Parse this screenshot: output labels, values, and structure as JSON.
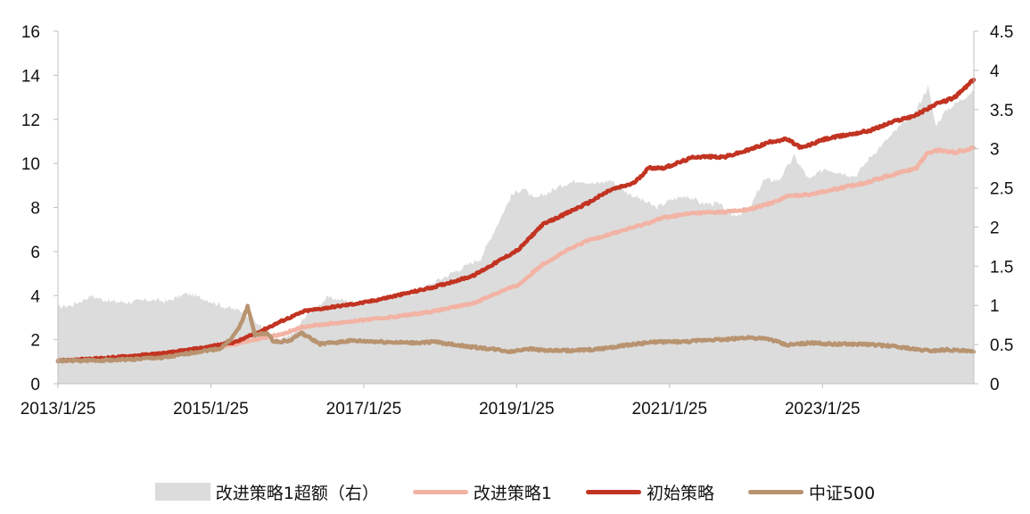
{
  "chart_data": {
    "type": "line",
    "title": "",
    "xlabel": "",
    "ylabel": "",
    "x_ticks": [
      "2013/1/25",
      "2015/1/25",
      "2017/1/25",
      "2019/1/25",
      "2021/1/25",
      "2023/1/25"
    ],
    "x_range": [
      2013.07,
      2025.05
    ],
    "ylim_left": [
      0,
      16
    ],
    "y_ticks_left": [
      "0",
      "2",
      "4",
      "6",
      "8",
      "10",
      "12",
      "14",
      "16"
    ],
    "ylim_right": [
      0,
      4.5
    ],
    "y_ticks_right": [
      "0",
      "0.5",
      "1",
      "1.5",
      "2",
      "2.5",
      "3",
      "3.5",
      "4",
      "4.5"
    ],
    "grid": false,
    "legend_position": "bottom",
    "series": [
      {
        "name": "改进策略1超额（右）",
        "axis": "right",
        "type": "area",
        "color": "#dcdcdc",
        "points": [
          [
            2013.07,
            0.98
          ],
          [
            2013.25,
            1.0
          ],
          [
            2013.5,
            1.12
          ],
          [
            2013.75,
            1.05
          ],
          [
            2014.0,
            1.04
          ],
          [
            2014.25,
            1.07
          ],
          [
            2014.5,
            1.05
          ],
          [
            2014.75,
            1.15
          ],
          [
            2015.0,
            1.08
          ],
          [
            2015.25,
            0.98
          ],
          [
            2015.5,
            0.92
          ],
          [
            2015.7,
            0.75
          ],
          [
            2015.9,
            0.55
          ],
          [
            2016.1,
            0.6
          ],
          [
            2016.35,
            0.9
          ],
          [
            2016.6,
            1.1
          ],
          [
            2016.9,
            1.05
          ],
          [
            2017.1,
            1.02
          ],
          [
            2017.4,
            1.12
          ],
          [
            2017.7,
            1.15
          ],
          [
            2018.0,
            1.3
          ],
          [
            2018.3,
            1.45
          ],
          [
            2018.6,
            1.6
          ],
          [
            2018.8,
            2.0
          ],
          [
            2019.0,
            2.4
          ],
          [
            2019.15,
            2.5
          ],
          [
            2019.3,
            2.35
          ],
          [
            2019.5,
            2.45
          ],
          [
            2019.7,
            2.55
          ],
          [
            2019.9,
            2.6
          ],
          [
            2020.1,
            2.55
          ],
          [
            2020.3,
            2.6
          ],
          [
            2020.5,
            2.45
          ],
          [
            2020.7,
            2.35
          ],
          [
            2020.9,
            2.25
          ],
          [
            2021.1,
            2.35
          ],
          [
            2021.3,
            2.4
          ],
          [
            2021.5,
            2.3
          ],
          [
            2021.7,
            2.3
          ],
          [
            2021.9,
            2.15
          ],
          [
            2022.1,
            2.2
          ],
          [
            2022.3,
            2.6
          ],
          [
            2022.5,
            2.6
          ],
          [
            2022.7,
            2.9
          ],
          [
            2022.9,
            2.6
          ],
          [
            2023.1,
            2.75
          ],
          [
            2023.3,
            2.7
          ],
          [
            2023.5,
            2.65
          ],
          [
            2023.7,
            2.9
          ],
          [
            2023.9,
            3.1
          ],
          [
            2024.1,
            3.3
          ],
          [
            2024.3,
            3.5
          ],
          [
            2024.45,
            3.8
          ],
          [
            2024.55,
            3.3
          ],
          [
            2024.7,
            3.5
          ],
          [
            2024.85,
            3.6
          ],
          [
            2025.05,
            3.75
          ]
        ]
      },
      {
        "name": "改进策略1",
        "axis": "left",
        "color": "#f2b3a4",
        "points": [
          [
            2013.07,
            1.05
          ],
          [
            2013.5,
            1.1
          ],
          [
            2014.0,
            1.22
          ],
          [
            2014.5,
            1.38
          ],
          [
            2015.0,
            1.6
          ],
          [
            2015.4,
            1.8
          ],
          [
            2015.7,
            2.05
          ],
          [
            2016.0,
            2.25
          ],
          [
            2016.3,
            2.6
          ],
          [
            2016.7,
            2.75
          ],
          [
            2017.1,
            2.9
          ],
          [
            2017.5,
            3.05
          ],
          [
            2018.0,
            3.3
          ],
          [
            2018.5,
            3.65
          ],
          [
            2018.8,
            4.1
          ],
          [
            2019.1,
            4.5
          ],
          [
            2019.4,
            5.4
          ],
          [
            2019.7,
            6.0
          ],
          [
            2020.0,
            6.5
          ],
          [
            2020.4,
            6.9
          ],
          [
            2020.7,
            7.2
          ],
          [
            2021.0,
            7.55
          ],
          [
            2021.4,
            7.75
          ],
          [
            2021.8,
            7.8
          ],
          [
            2022.1,
            7.9
          ],
          [
            2022.4,
            8.2
          ],
          [
            2022.6,
            8.5
          ],
          [
            2022.9,
            8.6
          ],
          [
            2023.2,
            8.8
          ],
          [
            2023.6,
            9.1
          ],
          [
            2024.0,
            9.5
          ],
          [
            2024.3,
            9.8
          ],
          [
            2024.45,
            10.5
          ],
          [
            2024.6,
            10.6
          ],
          [
            2024.8,
            10.5
          ],
          [
            2025.05,
            10.7
          ]
        ]
      },
      {
        "name": "初始策略",
        "axis": "left",
        "color": "#c23321",
        "points": [
          [
            2013.07,
            1.05
          ],
          [
            2013.5,
            1.12
          ],
          [
            2014.0,
            1.25
          ],
          [
            2014.5,
            1.4
          ],
          [
            2015.0,
            1.65
          ],
          [
            2015.4,
            1.9
          ],
          [
            2015.7,
            2.35
          ],
          [
            2016.0,
            2.85
          ],
          [
            2016.3,
            3.3
          ],
          [
            2016.7,
            3.5
          ],
          [
            2017.1,
            3.7
          ],
          [
            2017.5,
            4.0
          ],
          [
            2018.0,
            4.4
          ],
          [
            2018.5,
            4.9
          ],
          [
            2018.8,
            5.5
          ],
          [
            2019.1,
            6.1
          ],
          [
            2019.4,
            7.2
          ],
          [
            2019.7,
            7.7
          ],
          [
            2020.0,
            8.2
          ],
          [
            2020.3,
            8.8
          ],
          [
            2020.6,
            9.1
          ],
          [
            2020.8,
            9.8
          ],
          [
            2021.0,
            9.8
          ],
          [
            2021.4,
            10.3
          ],
          [
            2021.8,
            10.3
          ],
          [
            2022.1,
            10.6
          ],
          [
            2022.4,
            11.0
          ],
          [
            2022.6,
            11.1
          ],
          [
            2022.8,
            10.7
          ],
          [
            2023.1,
            11.1
          ],
          [
            2023.4,
            11.3
          ],
          [
            2023.7,
            11.5
          ],
          [
            2024.0,
            11.9
          ],
          [
            2024.3,
            12.2
          ],
          [
            2024.5,
            12.6
          ],
          [
            2024.8,
            13.0
          ],
          [
            2025.05,
            13.8
          ]
        ]
      },
      {
        "name": "中证500",
        "axis": "left",
        "color": "#b89370",
        "points": [
          [
            2013.07,
            1.05
          ],
          [
            2013.5,
            1.05
          ],
          [
            2014.0,
            1.1
          ],
          [
            2014.5,
            1.2
          ],
          [
            2014.9,
            1.45
          ],
          [
            2015.2,
            1.6
          ],
          [
            2015.35,
            2.1
          ],
          [
            2015.45,
            2.6
          ],
          [
            2015.55,
            3.5
          ],
          [
            2015.65,
            2.2
          ],
          [
            2015.8,
            2.3
          ],
          [
            2015.9,
            1.9
          ],
          [
            2016.1,
            1.95
          ],
          [
            2016.25,
            2.3
          ],
          [
            2016.35,
            2.1
          ],
          [
            2016.5,
            1.8
          ],
          [
            2016.9,
            1.95
          ],
          [
            2017.3,
            1.9
          ],
          [
            2017.7,
            1.85
          ],
          [
            2018.0,
            1.9
          ],
          [
            2018.4,
            1.7
          ],
          [
            2018.8,
            1.55
          ],
          [
            2019.0,
            1.45
          ],
          [
            2019.2,
            1.6
          ],
          [
            2019.5,
            1.5
          ],
          [
            2019.8,
            1.5
          ],
          [
            2020.1,
            1.55
          ],
          [
            2020.5,
            1.75
          ],
          [
            2020.9,
            1.9
          ],
          [
            2021.3,
            1.9
          ],
          [
            2021.6,
            2.0
          ],
          [
            2021.8,
            2.0
          ],
          [
            2022.1,
            2.1
          ],
          [
            2022.4,
            2.0
          ],
          [
            2022.6,
            1.75
          ],
          [
            2022.9,
            1.85
          ],
          [
            2023.2,
            1.8
          ],
          [
            2023.6,
            1.8
          ],
          [
            2024.0,
            1.7
          ],
          [
            2024.3,
            1.55
          ],
          [
            2024.5,
            1.5
          ],
          [
            2024.7,
            1.55
          ],
          [
            2025.05,
            1.45
          ]
        ]
      }
    ]
  }
}
